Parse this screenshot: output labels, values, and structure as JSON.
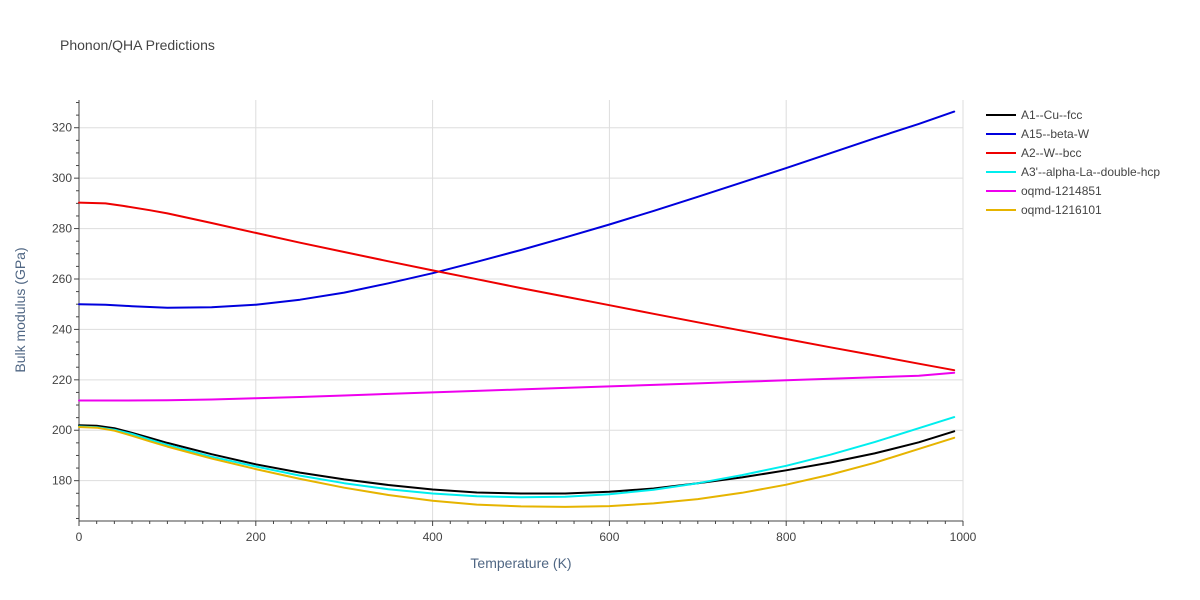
{
  "chart_data": {
    "type": "line",
    "title": "Phonon/QHA Predictions",
    "xlabel": "Temperature (K)",
    "ylabel": "Bulk modulus (GPa)",
    "xlim": [
      0,
      1000
    ],
    "ylim": [
      164,
      331
    ],
    "xticks": [
      0,
      200,
      400,
      600,
      800,
      1000
    ],
    "yticks": [
      180,
      200,
      220,
      240,
      260,
      280,
      300,
      320
    ],
    "grid": true,
    "legend_position": "top-right",
    "series": [
      {
        "name": "A1--Cu--fcc",
        "color": "#000000",
        "x": [
          0,
          20,
          40,
          60,
          80,
          100,
          150,
          200,
          250,
          300,
          350,
          400,
          450,
          500,
          550,
          600,
          650,
          700,
          750,
          800,
          850,
          900,
          950,
          990
        ],
        "y": [
          202,
          201.8,
          200.8,
          199,
          197,
          195,
          190.5,
          186.5,
          183.2,
          180.5,
          178.3,
          176.5,
          175.3,
          174.9,
          174.9,
          175.6,
          176.9,
          179.0,
          181.3,
          184.1,
          187.2,
          190.8,
          195.2,
          199.6
        ]
      },
      {
        "name": "A15--beta-W",
        "color": "#0000dd",
        "x": [
          0,
          30,
          60,
          100,
          150,
          200,
          250,
          300,
          350,
          400,
          450,
          500,
          550,
          600,
          650,
          700,
          750,
          800,
          850,
          900,
          950,
          990
        ],
        "y": [
          250,
          249.8,
          249.2,
          248.6,
          248.8,
          249.8,
          251.8,
          254.6,
          258.3,
          262.3,
          266.8,
          271.5,
          276.5,
          281.6,
          287.0,
          292.6,
          298.3,
          304.0,
          309.9,
          315.8,
          321.5,
          326.4
        ]
      },
      {
        "name": "A2--W--bcc",
        "color": "#ee0000",
        "x": [
          0,
          30,
          50,
          80,
          100,
          150,
          200,
          250,
          300,
          350,
          400,
          450,
          500,
          550,
          600,
          650,
          700,
          750,
          800,
          850,
          900,
          950,
          990
        ],
        "y": [
          290.3,
          290,
          289,
          287.3,
          286,
          282.2,
          278.3,
          274.4,
          270.7,
          267,
          263.4,
          259.9,
          256.4,
          253,
          249.6,
          246.2,
          242.8,
          239.5,
          236.2,
          232.9,
          229.7,
          226.4,
          223.8
        ]
      },
      {
        "name": "A3'--alpha-La--double-hcp",
        "color": "#00eeee",
        "x": [
          0,
          20,
          40,
          60,
          80,
          100,
          150,
          200,
          250,
          300,
          350,
          400,
          450,
          500,
          550,
          600,
          650,
          700,
          750,
          800,
          850,
          900,
          950,
          990
        ],
        "y": [
          201.5,
          201.2,
          200.2,
          198.5,
          196.3,
          194.2,
          189.5,
          185.6,
          182.0,
          179.0,
          176.6,
          174.9,
          173.8,
          173.4,
          173.6,
          174.6,
          176.4,
          179.0,
          182.2,
          185.9,
          190.3,
          195.3,
          200.8,
          205.2
        ]
      },
      {
        "name": "oqmd-1214851",
        "color": "#ee00ee",
        "x": [
          0,
          50,
          100,
          150,
          200,
          250,
          300,
          350,
          400,
          450,
          500,
          550,
          600,
          650,
          700,
          750,
          800,
          850,
          900,
          950,
          990
        ],
        "y": [
          211.8,
          211.8,
          211.9,
          212.2,
          212.7,
          213.2,
          213.8,
          214.4,
          215.0,
          215.6,
          216.2,
          216.8,
          217.4,
          218.0,
          218.6,
          219.2,
          219.8,
          220.4,
          221.0,
          221.6,
          222.8
        ]
      },
      {
        "name": "oqmd-1216101",
        "color": "#e6b400",
        "x": [
          0,
          20,
          40,
          60,
          80,
          100,
          150,
          200,
          250,
          300,
          350,
          400,
          450,
          500,
          550,
          600,
          650,
          700,
          750,
          800,
          850,
          900,
          950,
          990
        ],
        "y": [
          201.3,
          201,
          199.8,
          197.8,
          195.6,
          193.5,
          188.8,
          184.6,
          180.7,
          177.2,
          174.3,
          172.0,
          170.5,
          169.8,
          169.6,
          169.9,
          171.0,
          172.7,
          175.2,
          178.4,
          182.4,
          187.1,
          192.6,
          197.0
        ]
      }
    ]
  }
}
